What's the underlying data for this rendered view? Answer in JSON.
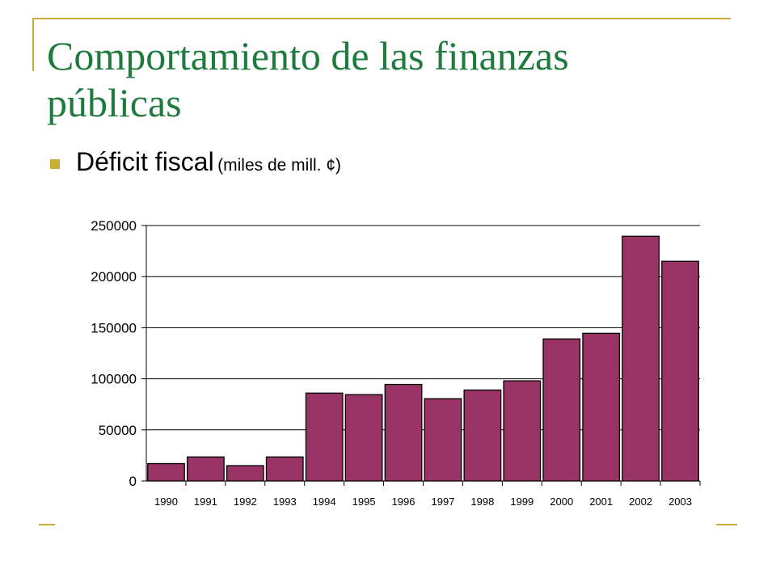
{
  "slide": {
    "title": "Comportamiento de las finanzas públicas",
    "bullet_text": "Déficit fiscal",
    "bullet_unit": "(miles de mill. ¢)",
    "accent_color": "#c9ac3a",
    "title_color": "#1f7a3e"
  },
  "chart_data": {
    "type": "bar",
    "title": "",
    "xlabel": "",
    "ylabel": "",
    "categories": [
      "1990",
      "1991",
      "1992",
      "1993",
      "1994",
      "1995",
      "1996",
      "1997",
      "1998",
      "1999",
      "2000",
      "2001",
      "2002",
      "2003"
    ],
    "values": [
      17000,
      23500,
      15000,
      23500,
      86000,
      84500,
      94500,
      80500,
      89000,
      98000,
      139000,
      144500,
      239500,
      215000
    ],
    "ylim": [
      0,
      250000
    ],
    "yticks": [
      0,
      50000,
      100000,
      150000,
      200000,
      250000
    ],
    "grid": true,
    "bar_color": "#993366",
    "bar_border_color": "#000000"
  }
}
